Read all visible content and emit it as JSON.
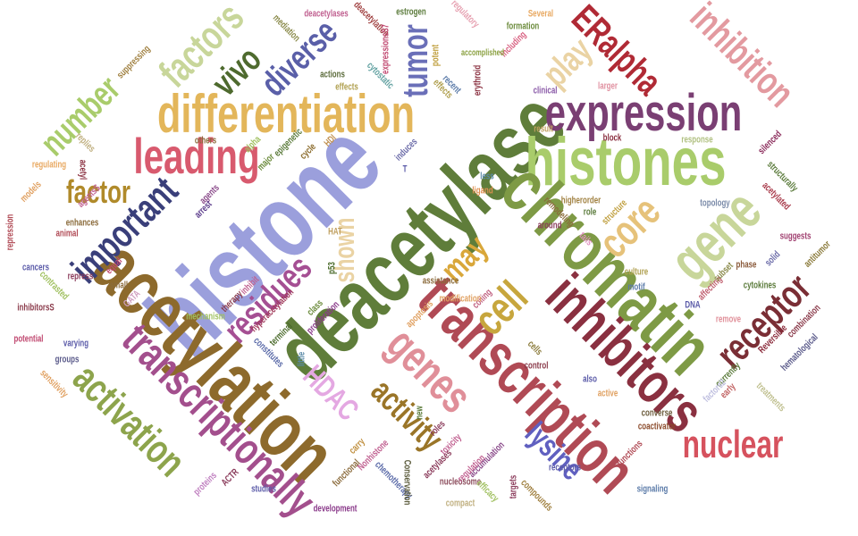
{
  "words": [
    {
      "text": "histone",
      "color": "#9b9fdc"
    },
    {
      "text": "deacetylase",
      "color": "#5f7d3a"
    },
    {
      "text": "acetylation",
      "color": "#8d6a2c"
    },
    {
      "text": "histones",
      "color": "#a9cc6b"
    },
    {
      "text": "chromatin",
      "color": "#7e9a45"
    },
    {
      "text": "transcription",
      "color": "#b04a55"
    },
    {
      "text": "inhibitors",
      "color": "#8a3040"
    },
    {
      "text": "differentiation",
      "color": "#e3b65a"
    },
    {
      "text": "expression",
      "color": "#7a3f73"
    },
    {
      "text": "transcriptionally",
      "color": "#a34f8d"
    },
    {
      "text": "gene",
      "color": "#c8d69a"
    },
    {
      "text": "leading",
      "color": "#d85a6e"
    },
    {
      "text": "genes",
      "color": "#e08f99"
    },
    {
      "text": "activation",
      "color": "#8da44c"
    },
    {
      "text": "cell",
      "color": "#c7a63d"
    },
    {
      "text": "core",
      "color": "#e6c27a"
    },
    {
      "text": "important",
      "color": "#3a3f7a"
    },
    {
      "text": "inhibition",
      "color": "#e39aa0"
    },
    {
      "text": "nuclear",
      "color": "#d6525e"
    },
    {
      "text": "receptor",
      "color": "#7a2e35"
    },
    {
      "text": "residues",
      "color": "#a54f93"
    },
    {
      "text": "factors",
      "color": "#c8d69a"
    },
    {
      "text": "number",
      "color": "#a9cc6b"
    },
    {
      "text": "diverse",
      "color": "#5a5fa8"
    },
    {
      "text": "vivo",
      "color": "#4e6a2e"
    },
    {
      "text": "factor",
      "color": "#b08a2a"
    },
    {
      "text": "ERalpha",
      "color": "#b02a35"
    },
    {
      "text": "tumor",
      "color": "#6a6fb8"
    },
    {
      "text": "play",
      "color": "#ead3a4"
    },
    {
      "text": "activity",
      "color": "#9a7528"
    },
    {
      "text": "HDAC",
      "color": "#e4a8e2"
    },
    {
      "text": "lysine",
      "color": "#6060c0"
    },
    {
      "text": "shown",
      "color": "#ead3a4"
    },
    {
      "text": "may",
      "color": "#d9a73a"
    },
    {
      "text": "mediation",
      "color": "#8a8a4a"
    },
    {
      "text": "deacetylases",
      "color": "#c06090"
    },
    {
      "text": "deacetylation",
      "color": "#a04040"
    },
    {
      "text": "expressionsS7",
      "color": "#c04870"
    },
    {
      "text": "estrogen",
      "color": "#5a7a3a"
    },
    {
      "text": "regulatory",
      "color": "#e6a0b0"
    },
    {
      "text": "Several",
      "color": "#e8a860"
    },
    {
      "text": "formation",
      "color": "#6a8a3a"
    },
    {
      "text": "including",
      "color": "#d86080"
    },
    {
      "text": "accomplished",
      "color": "#8aa040"
    },
    {
      "text": "suppressing",
      "color": "#a08040"
    },
    {
      "text": "potent",
      "color": "#c0a040"
    },
    {
      "text": "erythroid",
      "color": "#8a3040"
    },
    {
      "text": "recent",
      "color": "#5a7aa8"
    },
    {
      "text": "effects",
      "color": "#b0a050"
    },
    {
      "text": "actions",
      "color": "#5a6a3a"
    },
    {
      "text": "cytostatic",
      "color": "#60a0a0"
    },
    {
      "text": "clinical",
      "color": "#8a5aa8"
    },
    {
      "text": "larger",
      "color": "#e090a0"
    },
    {
      "text": "result",
      "color": "#c0a060"
    },
    {
      "text": "block",
      "color": "#8a3040"
    },
    {
      "text": "response",
      "color": "#b0c080"
    },
    {
      "text": "silenced",
      "color": "#8a2a5a"
    },
    {
      "text": "others",
      "color": "#8a6a3a"
    },
    {
      "text": "alpha",
      "color": "#a0c060"
    },
    {
      "text": "epigenetic",
      "color": "#5a7a3a"
    },
    {
      "text": "major",
      "color": "#6a8a3a"
    },
    {
      "text": "HDI",
      "color": "#c09050"
    },
    {
      "text": "cycle",
      "color": "#8a6a2a"
    },
    {
      "text": "induces",
      "color": "#6a6aa8"
    },
    {
      "text": "less",
      "color": "#5a8aa8"
    },
    {
      "text": "ligand",
      "color": "#e09050"
    },
    {
      "text": "higherorder",
      "color": "#a08040"
    },
    {
      "text": "structurally",
      "color": "#5a7a3a"
    },
    {
      "text": "acetylated",
      "color": "#a83a4a"
    },
    {
      "text": "regulating",
      "color": "#e8a860"
    },
    {
      "text": "replies",
      "color": "#c0b080"
    },
    {
      "text": "acetyl",
      "color": "#8a3040"
    },
    {
      "text": "agents",
      "color": "#8a4a8a"
    },
    {
      "text": "arrest",
      "color": "#5a3a8a"
    },
    {
      "text": "remodeling",
      "color": "#8a6a3a"
    },
    {
      "text": "role",
      "color": "#5a7a3a"
    },
    {
      "text": "structure",
      "color": "#c0a040"
    },
    {
      "text": "topology",
      "color": "#7a8aa8"
    },
    {
      "text": "agentsS",
      "color": "#c06090"
    },
    {
      "text": "models",
      "color": "#e0a060"
    },
    {
      "text": "enhances",
      "color": "#8a6a3a"
    },
    {
      "text": "animal",
      "color": "#b04a55"
    },
    {
      "text": "repression",
      "color": "#b04a55"
    },
    {
      "text": "around",
      "color": "#8a3a5a"
    },
    {
      "text": "suggests",
      "color": "#a04070"
    },
    {
      "text": "antitumor",
      "color": "#8a7a3a"
    },
    {
      "text": "tails",
      "color": "#e090c0"
    },
    {
      "text": "HAT",
      "color": "#c0a060"
    },
    {
      "text": "p53",
      "color": "#4a6a2a"
    },
    {
      "text": "cancers",
      "color": "#5a5aa8"
    },
    {
      "text": "repress",
      "color": "#8a3a5a"
    },
    {
      "text": "equal",
      "color": "#c04870"
    },
    {
      "text": "small",
      "color": "#8a6a3a"
    },
    {
      "text": "contrasted",
      "color": "#a0c060"
    },
    {
      "text": "hyperacetylation",
      "color": "#a03a5a"
    },
    {
      "text": "class",
      "color": "#6a8a3a"
    },
    {
      "text": "assistance",
      "color": "#8a6a3a"
    },
    {
      "text": "coiling",
      "color": "#c06080"
    },
    {
      "text": "culture",
      "color": "#b0a050"
    },
    {
      "text": "motif",
      "color": "#5a7aa8"
    },
    {
      "text": "phase",
      "color": "#8a5a3a"
    },
    {
      "text": "solid",
      "color": "#6a6aa8"
    },
    {
      "text": "cytokines",
      "color": "#5a7a3a"
    },
    {
      "text": "remove",
      "color": "#e08f99"
    },
    {
      "text": "combination",
      "color": "#8a3a4a"
    },
    {
      "text": "DNA",
      "color": "#5a5aa8"
    },
    {
      "text": "inhibitorsS",
      "color": "#8a3a4a"
    },
    {
      "text": "potential",
      "color": "#c04870"
    },
    {
      "text": "mechanism",
      "color": "#a0c060"
    },
    {
      "text": "varying",
      "color": "#5a5aa8"
    },
    {
      "text": "groups",
      "color": "#5a5a8a"
    },
    {
      "text": "proliferation",
      "color": "#8a3a8a"
    },
    {
      "text": "modification",
      "color": "#e0a060"
    },
    {
      "text": "coactivator",
      "color": "#8a4a2a"
    },
    {
      "text": "cells",
      "color": "#8a7a3a"
    },
    {
      "text": "control",
      "color": "#8a3a4a"
    },
    {
      "text": "also",
      "color": "#5a5aa8"
    },
    {
      "text": "currently",
      "color": "#5a7a3a"
    },
    {
      "text": "Reversible",
      "color": "#8a2a3a"
    },
    {
      "text": "hematological",
      "color": "#5a5a8a"
    },
    {
      "text": "treatments",
      "color": "#c0c090"
    },
    {
      "text": "active",
      "color": "#e0a060"
    },
    {
      "text": "converse",
      "color": "#6a5a3a"
    },
    {
      "text": "functions",
      "color": "#b04a55"
    },
    {
      "text": "early",
      "color": "#c06060"
    },
    {
      "text": "sensitivity",
      "color": "#e0a060"
    },
    {
      "text": "proteins",
      "color": "#c080c0"
    },
    {
      "text": "ACTR",
      "color": "#8a3a5a"
    },
    {
      "text": "studies",
      "color": "#5a5aa8"
    },
    {
      "text": "development",
      "color": "#8a3a8a"
    },
    {
      "text": "functional",
      "color": "#8a6a3a"
    },
    {
      "text": "Nonhistone",
      "color": "#c06090"
    },
    {
      "text": "chemotherapy",
      "color": "#5a6aa8"
    },
    {
      "text": "nucleosome",
      "color": "#8a4a5a"
    },
    {
      "text": "efficacy",
      "color": "#a0c060"
    },
    {
      "text": "compact",
      "color": "#c0b080"
    },
    {
      "text": "compounds",
      "color": "#a08040"
    },
    {
      "text": "receptors",
      "color": "#5a5aa8"
    },
    {
      "text": "targets",
      "color": "#8a3a5a"
    },
    {
      "text": "signaling",
      "color": "#5a7aa8"
    },
    {
      "text": "toxicity",
      "color": "#c06090"
    },
    {
      "text": "roles",
      "color": "#8a3a5a"
    },
    {
      "text": "new",
      "color": "#5a7a3a"
    },
    {
      "text": "accumulation",
      "color": "#8a4a8a"
    },
    {
      "text": "Conservation",
      "color": "#5a5a3a"
    },
    {
      "text": "carry",
      "color": "#c09040"
    },
    {
      "text": "constitutes",
      "color": "#5a6aa8"
    },
    {
      "text": "little",
      "color": "#5a8aa8"
    },
    {
      "text": "terminal",
      "color": "#4a6a2a"
    },
    {
      "text": "therapy",
      "color": "#8a3a4a"
    },
    {
      "text": "inhibit",
      "color": "#c06090"
    },
    {
      "text": "GATA",
      "color": "#d0a0c0"
    },
    {
      "text": "apoptosis",
      "color": "#e0a060"
    },
    {
      "text": "affecting",
      "color": "#c06070"
    },
    {
      "text": "subset",
      "color": "#8a8a4a"
    },
    {
      "text": "acetylases",
      "color": "#8a3a5a"
    },
    {
      "text": "regulation",
      "color": "#c06090"
    },
    {
      "text": "enzyme",
      "color": "#8a8a3a"
    },
    {
      "text": "under",
      "color": "#c0a040"
    },
    {
      "text": "suppressed",
      "color": "#c0c0e0"
    },
    {
      "text": "factors2",
      "color": "#8a8a3a"
    },
    {
      "text": "reported",
      "color": "#c0a060"
    },
    {
      "text": "elements",
      "color": "#a0c060"
    },
    {
      "text": "T",
      "color": "#5a5aa8"
    },
    {
      "text": "regulatory2",
      "color": "#8a6a3a"
    }
  ]
}
